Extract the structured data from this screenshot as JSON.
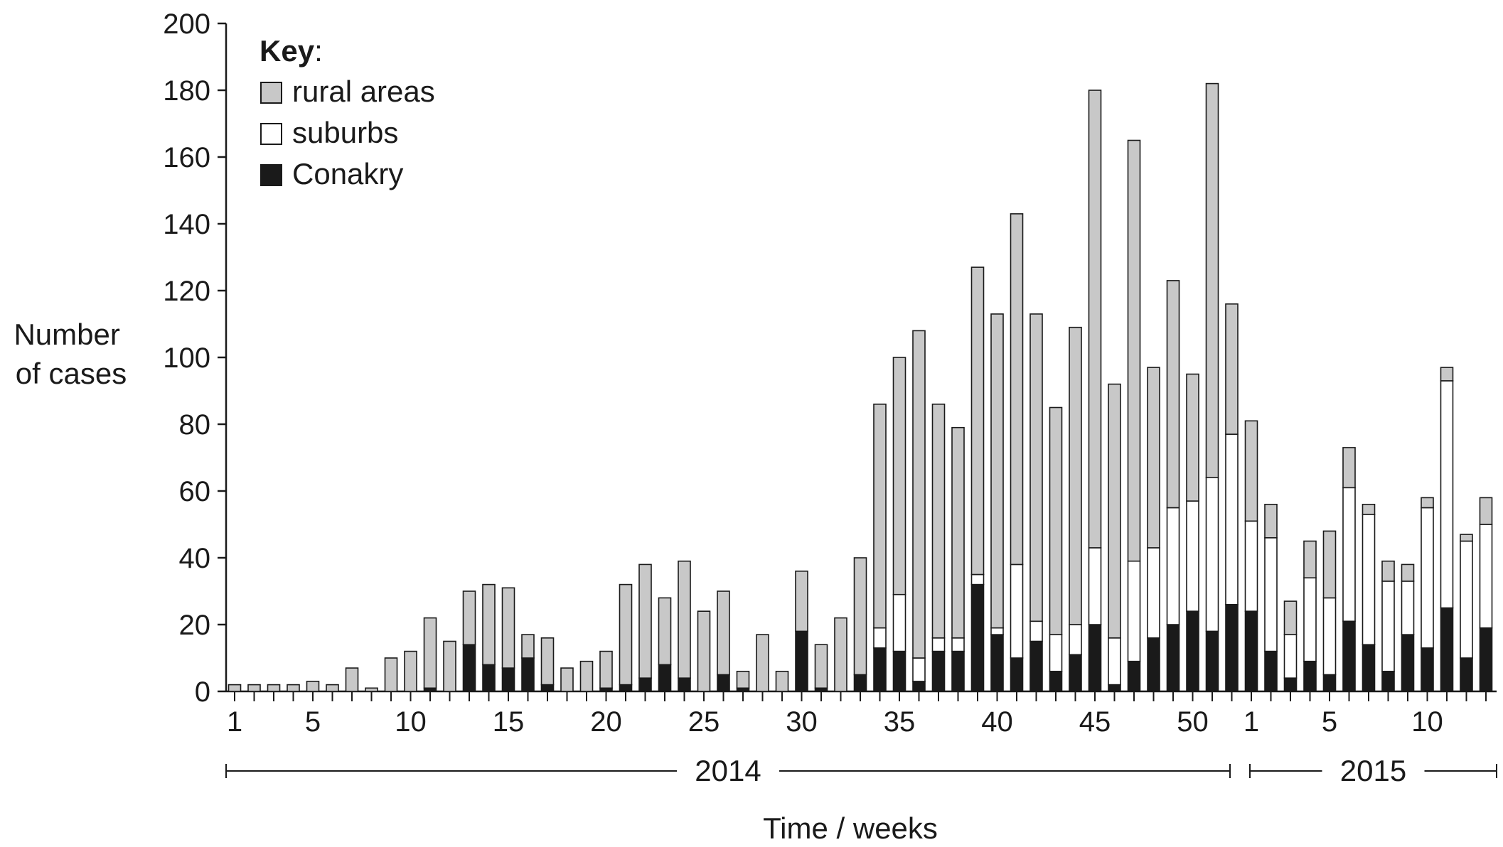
{
  "chart_data": {
    "type": "bar",
    "stacked": true,
    "ylabel_lines": [
      "Number",
      "of cases"
    ],
    "xlabel": "Time / weeks",
    "ylim": [
      0,
      200
    ],
    "yticks": [
      0,
      20,
      40,
      60,
      80,
      100,
      120,
      140,
      160,
      180,
      200
    ],
    "legend": {
      "title": "Key",
      "title_suffix": ":",
      "placement": "top-left",
      "entries": [
        "rural areas",
        "suburbs",
        "Conakry"
      ]
    },
    "colors": {
      "rural areas": "#c8c8c8",
      "suburbs": "#ffffff",
      "Conakry": "#1a1a1a"
    },
    "years": [
      {
        "label": "2014",
        "first_week": 1,
        "last_week": 52
      },
      {
        "label": "2015",
        "first_week": 1,
        "last_week": 13
      }
    ],
    "x_tick_labels": [
      {
        "year": "2014",
        "week": 1,
        "label": "1"
      },
      {
        "year": "2014",
        "week": 5,
        "label": "5"
      },
      {
        "year": "2014",
        "week": 10,
        "label": "10"
      },
      {
        "year": "2014",
        "week": 15,
        "label": "15"
      },
      {
        "year": "2014",
        "week": 20,
        "label": "20"
      },
      {
        "year": "2014",
        "week": 25,
        "label": "25"
      },
      {
        "year": "2014",
        "week": 30,
        "label": "30"
      },
      {
        "year": "2014",
        "week": 35,
        "label": "35"
      },
      {
        "year": "2014",
        "week": 40,
        "label": "40"
      },
      {
        "year": "2014",
        "week": 45,
        "label": "45"
      },
      {
        "year": "2014",
        "week": 50,
        "label": "50"
      },
      {
        "year": "2015",
        "week": 1,
        "label": "1"
      },
      {
        "year": "2015",
        "week": 5,
        "label": "5"
      },
      {
        "year": "2015",
        "week": 10,
        "label": "10"
      }
    ],
    "weeks": [
      "2014-W1",
      "2014-W2",
      "2014-W3",
      "2014-W4",
      "2014-W5",
      "2014-W6",
      "2014-W7",
      "2014-W8",
      "2014-W9",
      "2014-W10",
      "2014-W11",
      "2014-W12",
      "2014-W13",
      "2014-W14",
      "2014-W15",
      "2014-W16",
      "2014-W17",
      "2014-W18",
      "2014-W19",
      "2014-W20",
      "2014-W21",
      "2014-W22",
      "2014-W23",
      "2014-W24",
      "2014-W25",
      "2014-W26",
      "2014-W27",
      "2014-W28",
      "2014-W29",
      "2014-W30",
      "2014-W31",
      "2014-W32",
      "2014-W33",
      "2014-W34",
      "2014-W35",
      "2014-W36",
      "2014-W37",
      "2014-W38",
      "2014-W39",
      "2014-W40",
      "2014-W41",
      "2014-W42",
      "2014-W43",
      "2014-W44",
      "2014-W45",
      "2014-W46",
      "2014-W47",
      "2014-W48",
      "2014-W49",
      "2014-W50",
      "2014-W51",
      "2014-W52",
      "2015-W1",
      "2015-W2",
      "2015-W3",
      "2015-W4",
      "2015-W5",
      "2015-W6",
      "2015-W7",
      "2015-W8",
      "2015-W9",
      "2015-W10",
      "2015-W11",
      "2015-W12",
      "2015-W13"
    ],
    "series": [
      {
        "name": "Conakry",
        "values": [
          0,
          0,
          0,
          0,
          0,
          0,
          0,
          0,
          0,
          0,
          1,
          0,
          14,
          8,
          7,
          10,
          2,
          0,
          0,
          1,
          2,
          4,
          8,
          4,
          0,
          5,
          1,
          0,
          0,
          18,
          1,
          0,
          5,
          13,
          12,
          3,
          12,
          12,
          32,
          17,
          10,
          15,
          6,
          11,
          20,
          2,
          9,
          16,
          20,
          24,
          18,
          26,
          24,
          12,
          4,
          9,
          5,
          21,
          14,
          6,
          17,
          13,
          25,
          10,
          19
        ]
      },
      {
        "name": "suburbs",
        "values": [
          0,
          0,
          0,
          0,
          0,
          0,
          0,
          0,
          0,
          0,
          0,
          0,
          0,
          0,
          0,
          0,
          0,
          0,
          0,
          0,
          0,
          0,
          0,
          0,
          0,
          0,
          0,
          0,
          0,
          0,
          0,
          0,
          0,
          6,
          17,
          7,
          4,
          4,
          3,
          2,
          28,
          6,
          11,
          9,
          23,
          14,
          30,
          27,
          35,
          33,
          46,
          51,
          27,
          34,
          13,
          25,
          23,
          40,
          39,
          27,
          16,
          42,
          68,
          35,
          31
        ]
      },
      {
        "name": "rural areas",
        "values": [
          2,
          2,
          2,
          2,
          3,
          2,
          7,
          1,
          10,
          12,
          21,
          15,
          16,
          24,
          24,
          7,
          14,
          7,
          9,
          11,
          30,
          34,
          20,
          35,
          24,
          25,
          5,
          17,
          6,
          18,
          13,
          22,
          35,
          67,
          71,
          98,
          70,
          63,
          92,
          94,
          105,
          92,
          68,
          89,
          137,
          76,
          126,
          54,
          68,
          38,
          118,
          39,
          30,
          10,
          10,
          11,
          20,
          12,
          3,
          6,
          5,
          3,
          4,
          2,
          8
        ]
      }
    ]
  }
}
